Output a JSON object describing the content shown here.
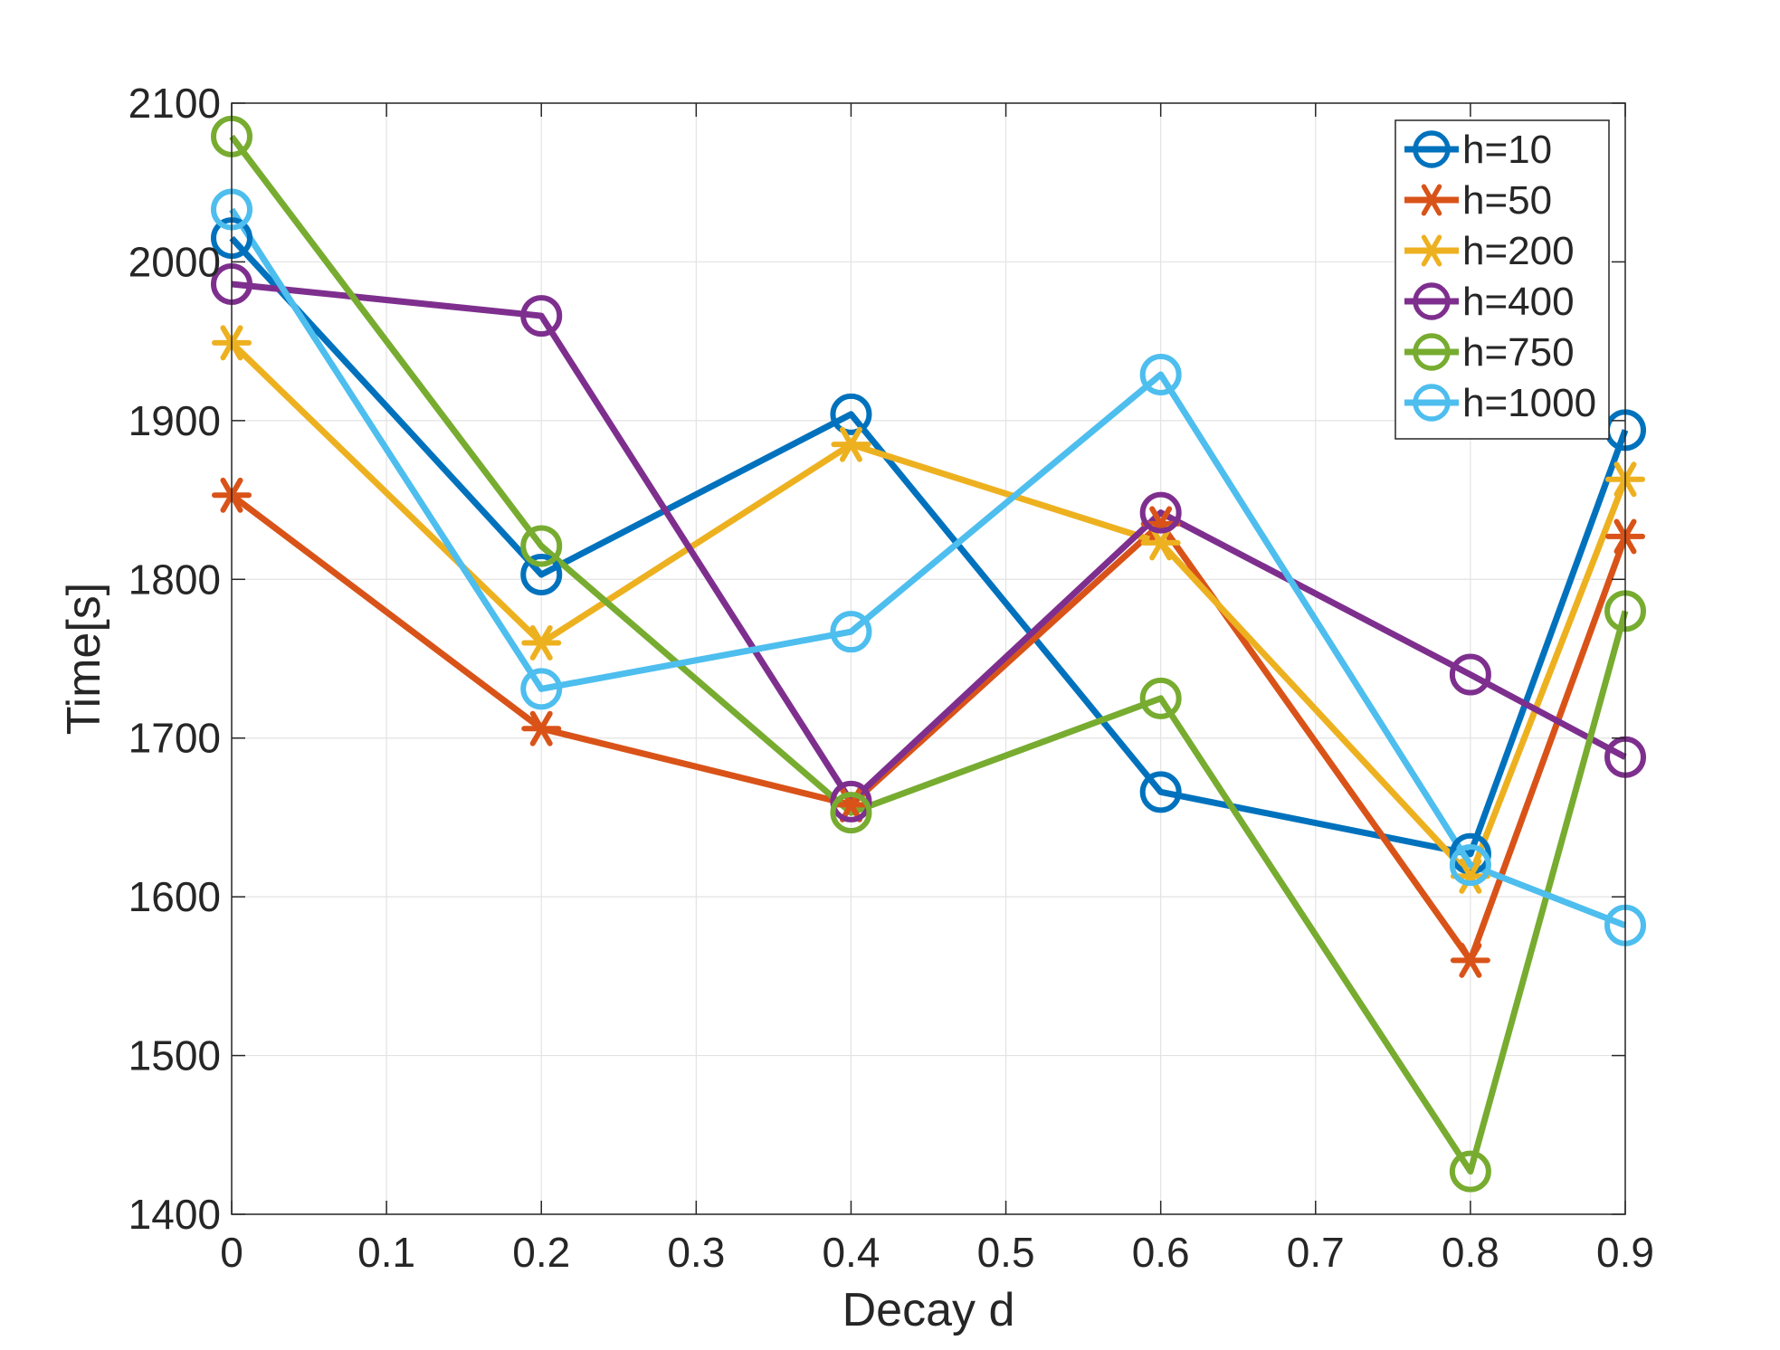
{
  "chart_data": {
    "type": "line",
    "title": "",
    "xlabel": "Decay d",
    "ylabel": "Time[s]",
    "xlim": [
      0,
      0.9
    ],
    "ylim": [
      1400,
      2100
    ],
    "grid": true,
    "legend_position": "top-right",
    "x": [
      0,
      0.2,
      0.4,
      0.6,
      0.8,
      0.9
    ],
    "x_ticks": [
      0,
      0.1,
      0.2,
      0.3,
      0.4,
      0.5,
      0.6,
      0.7,
      0.8,
      0.9
    ],
    "x_tick_labels": [
      "0",
      "0.1",
      "0.2",
      "0.3",
      "0.4",
      "0.5",
      "0.6",
      "0.7",
      "0.8",
      "0.9"
    ],
    "y_ticks": [
      1400,
      1500,
      1600,
      1700,
      1800,
      1900,
      2000,
      2100
    ],
    "y_tick_labels": [
      "1400",
      "1500",
      "1600",
      "1700",
      "1800",
      "1900",
      "2000",
      "2100"
    ],
    "series": [
      {
        "name": "h=10",
        "color": "#0072BD",
        "marker": "circle",
        "values": [
          2015,
          1803,
          1904,
          1666,
          1627,
          1894
        ]
      },
      {
        "name": "h=50",
        "color": "#D95319",
        "marker": "asterisk",
        "values": [
          1853,
          1706,
          1658,
          1835,
          1560,
          1827
        ]
      },
      {
        "name": "h=200",
        "color": "#EDB120",
        "marker": "asterisk",
        "values": [
          1949,
          1760,
          1885,
          1823,
          1613,
          1863
        ]
      },
      {
        "name": "h=400",
        "color": "#7E2F8E",
        "marker": "circle",
        "values": [
          1986,
          1966,
          1660,
          1842,
          1740,
          1688
        ]
      },
      {
        "name": "h=750",
        "color": "#77AC30",
        "marker": "circle",
        "values": [
          2079,
          1821,
          1653,
          1725,
          1427,
          1780
        ]
      },
      {
        "name": "h=1000",
        "color": "#4DBEEE",
        "marker": "circle",
        "values": [
          2033,
          1731,
          1767,
          1929,
          1620,
          1582
        ]
      }
    ]
  }
}
